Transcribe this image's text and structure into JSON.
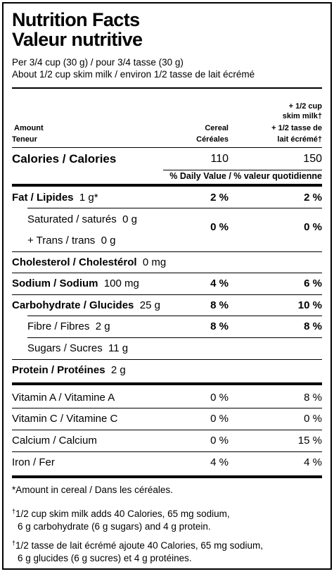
{
  "title_en": "Nutrition Facts",
  "title_fr": "Valeur nutritive",
  "serving_1": "Per 3/4 cup (30 g) / pour 3/4 tasse (30 g)",
  "serving_2": "About 1/2 cup skim milk / environ 1/2 tasse de lait écrémé",
  "header": {
    "amount": "Amount",
    "teneur": "Teneur",
    "cereal": "Cereal",
    "cereales": "Céréales",
    "milk_line1": "+ 1/2 cup",
    "milk_line2": "skim milk†",
    "milk_line3": "+ 1/2 tasse de",
    "milk_line4": "lait écrémé†"
  },
  "calories": {
    "label": "Calories / Calories",
    "cereal": "110",
    "milk": "150"
  },
  "daily_value_label": "% Daily Value / % valeur quotidienne",
  "nutrients": {
    "fat": {
      "label": "Fat / Lipides",
      "amount": "1 g*",
      "cereal": "2 %",
      "milk": "2 %"
    },
    "saturated": {
      "label": "Saturated / saturés",
      "amount": "0 g"
    },
    "trans": {
      "label": "+ Trans / trans",
      "amount": "0 g"
    },
    "sat_trans_cereal": "0 %",
    "sat_trans_milk": "0 %",
    "cholesterol": {
      "label": "Cholesterol / Cholestérol",
      "amount": "0 mg"
    },
    "sodium": {
      "label": "Sodium / Sodium",
      "amount": "100 mg",
      "cereal": "4 %",
      "milk": "6 %"
    },
    "carbohydrate": {
      "label": "Carbohydrate / Glucides",
      "amount": "25 g",
      "cereal": "8 %",
      "milk": "10 %"
    },
    "fibre": {
      "label": "Fibre / Fibres",
      "amount": "2 g",
      "cereal": "8 %",
      "milk": "8 %"
    },
    "sugars": {
      "label": "Sugars / Sucres",
      "amount": "11 g"
    },
    "protein": {
      "label": "Protein / Protéines",
      "amount": "2 g"
    }
  },
  "vitamins": [
    {
      "label": "Vitamin A / Vitamine A",
      "cereal": "0 %",
      "milk": "8 %"
    },
    {
      "label": "Vitamin C / Vitamine C",
      "cereal": "0 %",
      "milk": "0 %"
    },
    {
      "label": "Calcium / Calcium",
      "cereal": "0 %",
      "milk": "15 %"
    },
    {
      "label": "Iron / Fer",
      "cereal": "4 %",
      "milk": "4 %"
    }
  ],
  "footnotes": {
    "asterisk": "*Amount in cereal / Dans les céréales.",
    "dagger_mark": "†",
    "milk_en_1": "1/2 cup skim milk adds 40 Calories, 65 mg sodium,",
    "milk_en_2": "6 g carbohydrate (6 g sugars) and 4 g protein.",
    "milk_fr_1": "1/2 tasse de lait écrémé ajoute 40 Calories, 65 mg sodium,",
    "milk_fr_2": "6 g glucides (6 g sucres) et 4 g protéines."
  }
}
